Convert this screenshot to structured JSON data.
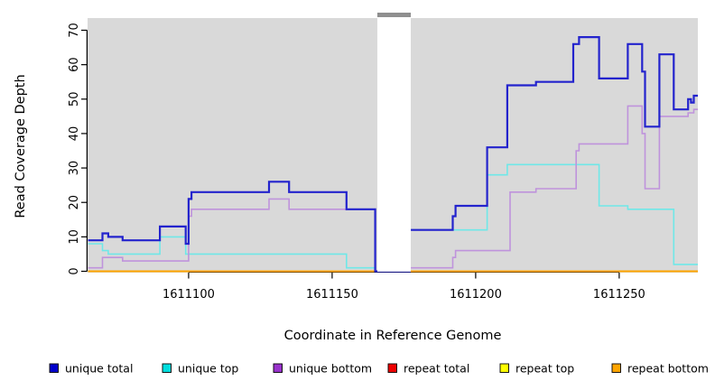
{
  "chart_data": {
    "type": "line",
    "subtype": "step",
    "title": "",
    "xlabel": "Coordinate in Reference Genome",
    "ylabel": "Read Coverage Depth",
    "xlim": [
      1611065,
      1611277
    ],
    "ylim": [
      0,
      73
    ],
    "x_ticks": [
      "1611100",
      "1611150",
      "1611200",
      "1611250"
    ],
    "x_tick_values": [
      1611100,
      1611150,
      1611200,
      1611250
    ],
    "y_ticks": [
      "0",
      "10",
      "20",
      "30",
      "40",
      "50",
      "60",
      "70"
    ],
    "y_tick_values": [
      0,
      10,
      20,
      30,
      40,
      50,
      60,
      70
    ],
    "grid": false,
    "plot_background": "#d9d9d9",
    "page_background": "#ffffff",
    "axis_color": "#000000",
    "gap_band": {
      "x_start": 1611165.4,
      "x_end": 1611177.5,
      "color": "#ffffff",
      "cap_color": "#8f8f8f",
      "note": "white no-data band with gray cap at top"
    },
    "series": [
      {
        "name": "repeat total",
        "color": "#e60000",
        "width": 1.6,
        "points": [
          [
            1611065,
            0
          ]
        ]
      },
      {
        "name": "repeat top",
        "color": "#ffff00",
        "width": 1.6,
        "points": [
          [
            1611065,
            0
          ]
        ]
      },
      {
        "name": "unique top",
        "color": "#6fe8e8",
        "width": 1.6,
        "points": [
          [
            1611065,
            8
          ],
          [
            1611070,
            6
          ],
          [
            1611072,
            5
          ],
          [
            1611090,
            10
          ],
          [
            1611099,
            5
          ],
          [
            1611155,
            1
          ],
          [
            1611165,
            0
          ],
          [
            1611177,
            12
          ],
          [
            1611204,
            28
          ],
          [
            1611211,
            31
          ],
          [
            1611243,
            19
          ],
          [
            1611253,
            18
          ],
          [
            1611269,
            2
          ]
        ]
      },
      {
        "name": "unique bottom",
        "color": "#bf93dc",
        "width": 1.6,
        "points": [
          [
            1611065,
            1
          ],
          [
            1611070,
            4
          ],
          [
            1611077,
            3
          ],
          [
            1611100,
            16
          ],
          [
            1611101,
            18
          ],
          [
            1611128,
            21
          ],
          [
            1611135,
            18
          ],
          [
            1611165,
            0
          ],
          [
            1611177,
            1
          ],
          [
            1611192,
            4
          ],
          [
            1611193,
            6
          ],
          [
            1611212,
            23
          ],
          [
            1611221,
            24
          ],
          [
            1611235,
            35
          ],
          [
            1611236,
            37
          ],
          [
            1611253,
            48
          ],
          [
            1611258,
            40
          ],
          [
            1611259,
            24
          ],
          [
            1611264,
            45
          ],
          [
            1611274,
            46
          ],
          [
            1611276,
            47
          ]
        ]
      },
      {
        "name": "repeat bottom",
        "color": "#ffa500",
        "width": 1.9,
        "points": [
          [
            1611065,
            0
          ]
        ]
      },
      {
        "name": "unique total",
        "color": "#2323cd",
        "width": 2.2,
        "points": [
          [
            1611065,
            9
          ],
          [
            1611070,
            11
          ],
          [
            1611072,
            10
          ],
          [
            1611077,
            9
          ],
          [
            1611090,
            13
          ],
          [
            1611099,
            8
          ],
          [
            1611100,
            21
          ],
          [
            1611101,
            23
          ],
          [
            1611128,
            26
          ],
          [
            1611135,
            23
          ],
          [
            1611155,
            18
          ],
          [
            1611165,
            0
          ],
          [
            1611177,
            12
          ],
          [
            1611192,
            16
          ],
          [
            1611193,
            19
          ],
          [
            1611204,
            36
          ],
          [
            1611211,
            54
          ],
          [
            1611221,
            55
          ],
          [
            1611234,
            66
          ],
          [
            1611236,
            68
          ],
          [
            1611243,
            56
          ],
          [
            1611253,
            66
          ],
          [
            1611258,
            58
          ],
          [
            1611259,
            42
          ],
          [
            1611264,
            63
          ],
          [
            1611269,
            47
          ],
          [
            1611274,
            50
          ],
          [
            1611275,
            49
          ],
          [
            1611276,
            51
          ]
        ]
      }
    ],
    "legend": [
      {
        "label": "unique total",
        "swatch": "#0000cc"
      },
      {
        "label": "unique top",
        "swatch": "#00dede"
      },
      {
        "label": "unique bottom",
        "swatch": "#9933cc"
      },
      {
        "label": "repeat total",
        "swatch": "#ee0000"
      },
      {
        "label": "repeat top",
        "swatch": "#ffff00"
      },
      {
        "label": "repeat bottom",
        "swatch": "#ffa500"
      }
    ],
    "legend_position": "bottom"
  }
}
